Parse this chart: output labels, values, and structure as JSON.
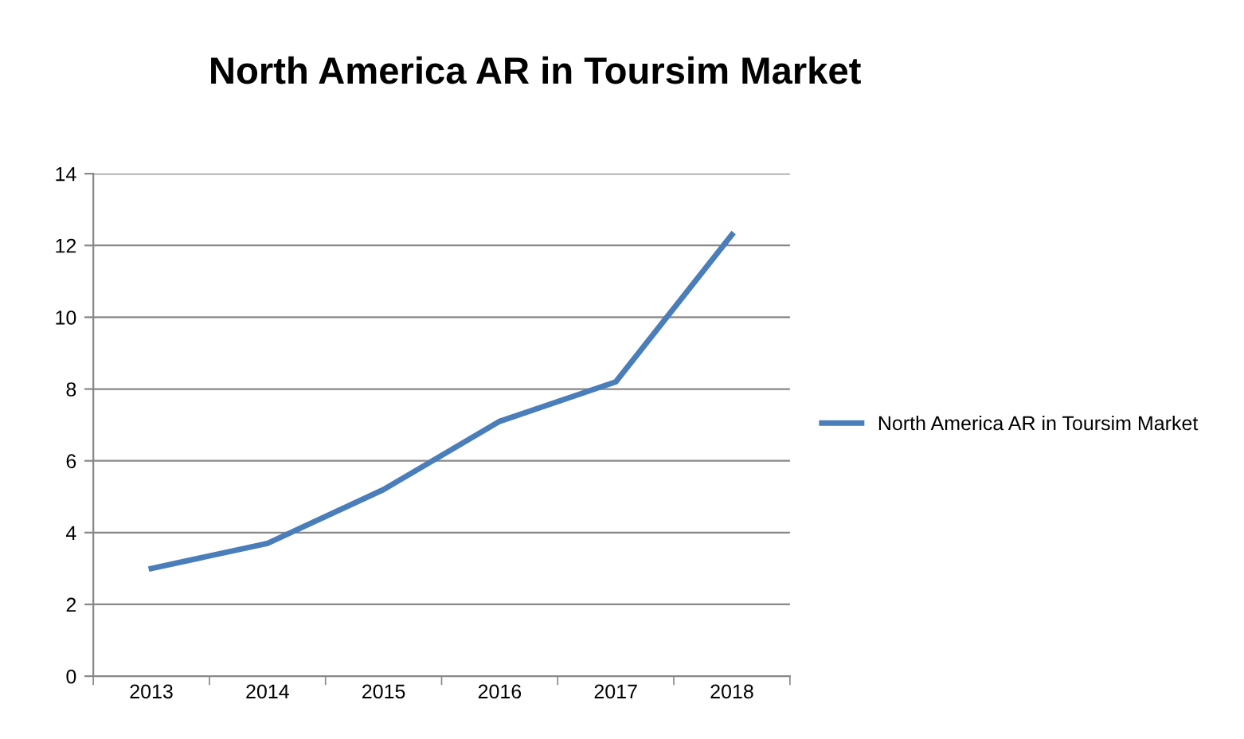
{
  "chart_data": {
    "type": "line",
    "title": "North America AR in Toursim Market",
    "categories": [
      "2013",
      "2014",
      "2015",
      "2016",
      "2017",
      "2018"
    ],
    "series": [
      {
        "name": "North America AR in Toursim Market",
        "color": "#4a7ebb",
        "values": [
          3.0,
          3.7,
          5.2,
          7.1,
          8.2,
          12.3
        ]
      }
    ],
    "ylim": [
      0,
      14
    ],
    "yticks": [
      0,
      2,
      4,
      6,
      8,
      10,
      12,
      14
    ],
    "grid": "y",
    "legend": "right",
    "marker": "none",
    "line_style": "solid"
  }
}
